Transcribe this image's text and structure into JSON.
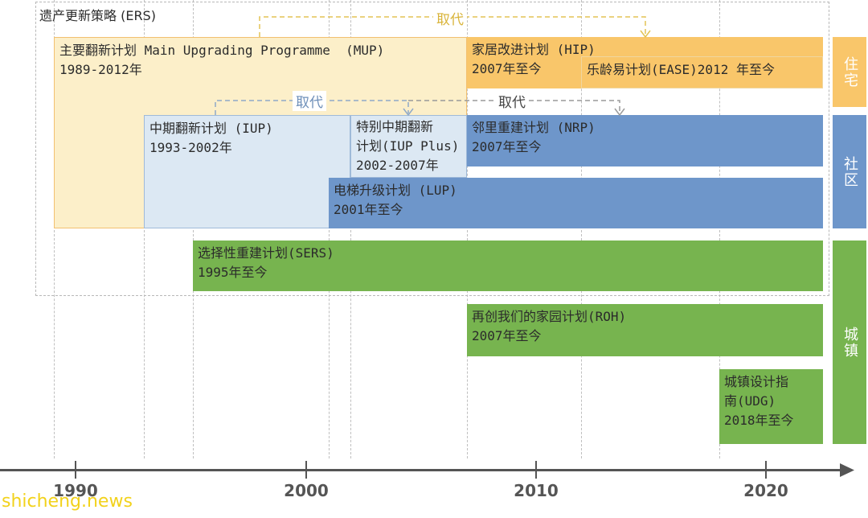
{
  "ers_label": "遗产更新策略 (ERS)",
  "replace_label_1": "取代",
  "replace_label_2": "取代",
  "replace_label_3": "取代",
  "mup": {
    "line1": "主要翻新计划 Main Upgrading Programme  (MUP)",
    "line2": "1989-2012年"
  },
  "hip": {
    "line1": "家居改进计划 (HIP)",
    "line2": "2007年至今"
  },
  "ease": {
    "line1": "乐龄易计划(EASE)2012 年至今"
  },
  "iup": {
    "line1": "中期翻新计划 (IUP)",
    "line2": "1993-2002年"
  },
  "iup_plus": {
    "line1": "特别中期翻新",
    "line2": "计划(IUP Plus)",
    "line3": "2002-2007年"
  },
  "nrp": {
    "line1": "邻里重建计划 (NRP)",
    "line2": "2007年至今"
  },
  "lup": {
    "line1": "电梯升级计划 (LUP)",
    "line2": "2001年至今"
  },
  "sers": {
    "line1": "选择性重建计划(SERS)",
    "line2": "1995年至今"
  },
  "roh": {
    "line1": "再创我们的家园计划(ROH)",
    "line2": "2007年至今"
  },
  "udg": {
    "line1": "城镇设计指",
    "line2": "南(UDG)",
    "line3": "2018年至今"
  },
  "sidebar": {
    "housing": "住宅",
    "community": "社区",
    "town": "城镇"
  },
  "axis": {
    "years": [
      "1990",
      "2000",
      "2010",
      "2020"
    ]
  },
  "watermark": "shicheng.news",
  "colors": {
    "orange": "#F9C66A",
    "orange_light": "#FCEFC9",
    "blue": "#6E96CA",
    "blue_light": "#DCE8F3",
    "green": "#77B44F",
    "axis": "#555555"
  }
}
